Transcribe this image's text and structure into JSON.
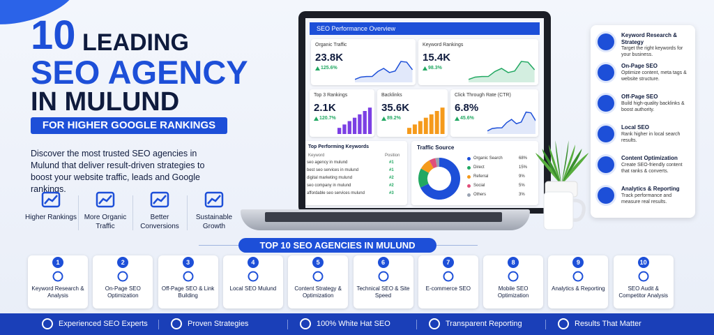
{
  "header": {
    "number": 10,
    "title": [
      "LEADING",
      "SEO AGENCY",
      "IN MULUND"
    ],
    "tagline": "FOR HIGHER GOOGLE RANKINGS",
    "description": "Discover the most trusted SEO agencies in Mulund that deliver result-driven strategies to boost your website traffic, leads and Google rankings."
  },
  "stats": [
    "Higher Rankings",
    "More Organic Traffic",
    "Better Conversions",
    "Sustainable Growth"
  ],
  "dashboard": {
    "title": "SEO Performance Overview",
    "cards": [
      {
        "label": "Organic Traffic",
        "value": "23.8K",
        "change": "125.6%"
      },
      {
        "label": "Keyword Rankings",
        "value": "15.4K",
        "change": "98.3%"
      },
      {
        "label": "Top 3 Rankings",
        "value": "2.1K",
        "change": "120.7%"
      },
      {
        "label": "Backlinks",
        "value": "35.6K",
        "change": "89.2%"
      },
      {
        "label": "Click Through Rate (CTR)",
        "value": "6.8%",
        "change": "45.6%"
      }
    ],
    "keywords": {
      "title": "Top Performing Keywords",
      "headers": [
        "Keyword",
        "Position"
      ],
      "rows": [
        [
          "seo agency in mulund",
          "#1"
        ],
        [
          "best seo services in mulund",
          "#1"
        ],
        [
          "digital marketing mulund",
          "#2"
        ],
        [
          "seo company in mulund",
          "#2"
        ],
        [
          "affordable seo services mulund",
          "#3"
        ]
      ]
    },
    "traffic": {
      "title": "Traffic Source",
      "labels": [
        "Organic Search",
        "Direct",
        "Referral",
        "Social",
        "Others"
      ],
      "values": [
        68,
        15,
        9,
        5,
        3
      ],
      "value_labels": [
        "68%",
        "15%",
        "9%",
        "5%",
        "3%"
      ],
      "colors": [
        "#1d4fd8",
        "#22a862",
        "#f59a1b",
        "#e04f7a",
        "#9aa3b2"
      ]
    }
  },
  "services": [
    {
      "title": "Keyword Research & Strategy",
      "desc": "Target the right keywords for your business."
    },
    {
      "title": "On-Page SEO",
      "desc": "Optimize content, meta tags & website structure."
    },
    {
      "title": "Off-Page SEO",
      "desc": "Build high-quality backlinks & boost authority."
    },
    {
      "title": "Local SEO",
      "desc": "Rank higher in local search results."
    },
    {
      "title": "Content Optimization",
      "desc": "Create SEO-friendly content that ranks & converts."
    },
    {
      "title": "Analytics & Reporting",
      "desc": "Track performance and measure real results."
    }
  ],
  "banner": "TOP 10 SEO AGENCIES IN MULUND",
  "agencies": [
    {
      "number": 1,
      "label": "Keyword Research & Analysis"
    },
    {
      "number": 2,
      "label": "On-Page SEO Optimization"
    },
    {
      "number": 3,
      "label": "Off-Page SEO & Link Building"
    },
    {
      "number": 4,
      "label": "Local SEO Mulund"
    },
    {
      "number": 5,
      "label": "Content Strategy & Optimization"
    },
    {
      "number": 6,
      "label": "Technical SEO & Site Speed"
    },
    {
      "number": 7,
      "label": "E-commerce SEO"
    },
    {
      "number": 8,
      "label": "Mobile SEO Optimization"
    },
    {
      "number": 9,
      "label": "Analytics & Reporting"
    },
    {
      "number": 10,
      "label": "SEO Audit & Competitor Analysis"
    }
  ],
  "footer": [
    "Experienced SEO Experts",
    "Proven Strategies",
    "100% White Hat SEO",
    "Transparent Reporting",
    "Results That Matter"
  ]
}
